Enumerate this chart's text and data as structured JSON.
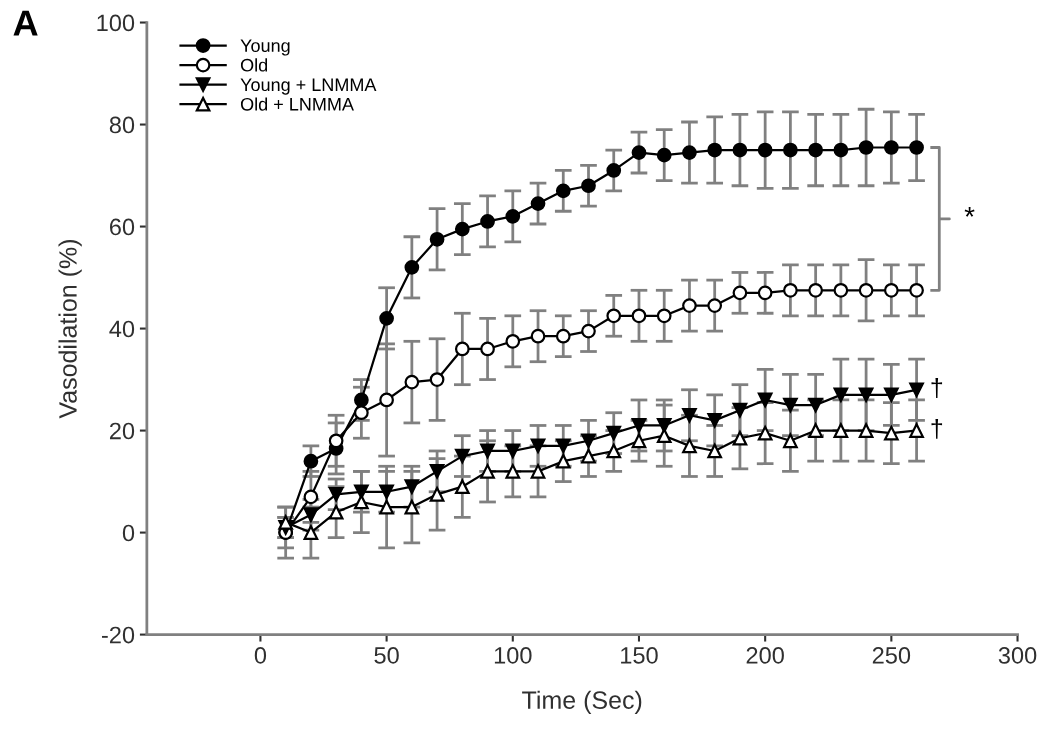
{
  "chart_data": {
    "type": "line",
    "xlabel": "Time (Sec)",
    "ylabel": "Vasodilation (%)",
    "x": [
      10,
      20,
      30,
      40,
      50,
      60,
      70,
      80,
      90,
      100,
      110,
      120,
      130,
      140,
      150,
      160,
      170,
      180,
      190,
      200,
      210,
      220,
      230,
      240,
      250,
      260
    ],
    "xlim": [
      -45,
      300
    ],
    "xticks": [
      0,
      50,
      100,
      150,
      200,
      250,
      300
    ],
    "ylim": [
      -20,
      100
    ],
    "yticks": [
      -20,
      0,
      20,
      40,
      60,
      80,
      100
    ],
    "grid": false,
    "legend": "top left",
    "line_style": "solid",
    "series": [
      {
        "name": "Young",
        "color": "#000000",
        "marker": "circle",
        "values": [
          0,
          14,
          16.5,
          26,
          42,
          52,
          57.5,
          59.5,
          61,
          62,
          64.5,
          67,
          68,
          71,
          74.5,
          74,
          74.5,
          75,
          75,
          75,
          75,
          75,
          75,
          75.5,
          75.5,
          75.5
        ],
        "errors": [
          3,
          3,
          5,
          4,
          6,
          6,
          6,
          5,
          5,
          5,
          4,
          4,
          4,
          4,
          4,
          5,
          6,
          6.5,
          7,
          7.5,
          7.5,
          7,
          7,
          7.5,
          7,
          6.5
        ]
      },
      {
        "name": "Old",
        "color": "#000000",
        "marker": "circle_open",
        "values": [
          0,
          7,
          18,
          23.5,
          26,
          29.5,
          30,
          36,
          36,
          37.5,
          38.5,
          38.5,
          39.5,
          42.5,
          42.5,
          42.5,
          44.5,
          44.5,
          47,
          47,
          47.5,
          47.5,
          47.5,
          47.5,
          47.5,
          47.5
        ],
        "errors": [
          5,
          5,
          5,
          5,
          11,
          8,
          8,
          7,
          6,
          5,
          5,
          4,
          4,
          4,
          5,
          5,
          5,
          5,
          4,
          4,
          5,
          5,
          5,
          6,
          5,
          5
        ]
      },
      {
        "name": "Young + LNMMA",
        "color": "#000000",
        "marker": "triangle_down",
        "values": [
          1,
          3.5,
          7.5,
          8,
          8,
          9,
          12,
          15,
          16,
          16,
          17,
          17,
          18,
          19.5,
          21,
          21,
          23,
          22,
          24,
          26,
          25,
          25,
          27,
          27,
          27,
          28
        ],
        "errors": [
          2,
          3,
          3,
          4,
          4,
          4,
          4,
          4,
          4,
          4,
          4,
          4,
          4,
          4,
          5,
          5,
          5,
          5,
          5,
          6,
          6,
          6,
          7,
          7,
          6,
          6
        ]
      },
      {
        "name": "Old + LNMMA",
        "color": "#000000",
        "marker": "triangle_open",
        "values": [
          2,
          0,
          4,
          6,
          5,
          5,
          7.5,
          9,
          12,
          12,
          12,
          14,
          15,
          16,
          18,
          19,
          17,
          16,
          18.5,
          19.5,
          18,
          20,
          20,
          20,
          19.5,
          20
        ],
        "errors": [
          3,
          5,
          5,
          6,
          8,
          7,
          7,
          6,
          6,
          5,
          5,
          4,
          4,
          4,
          4,
          6,
          6,
          5,
          6,
          6,
          6,
          6,
          6,
          6,
          6,
          6
        ]
      }
    ],
    "annotations": [
      "A",
      "*",
      "†",
      "†"
    ]
  }
}
